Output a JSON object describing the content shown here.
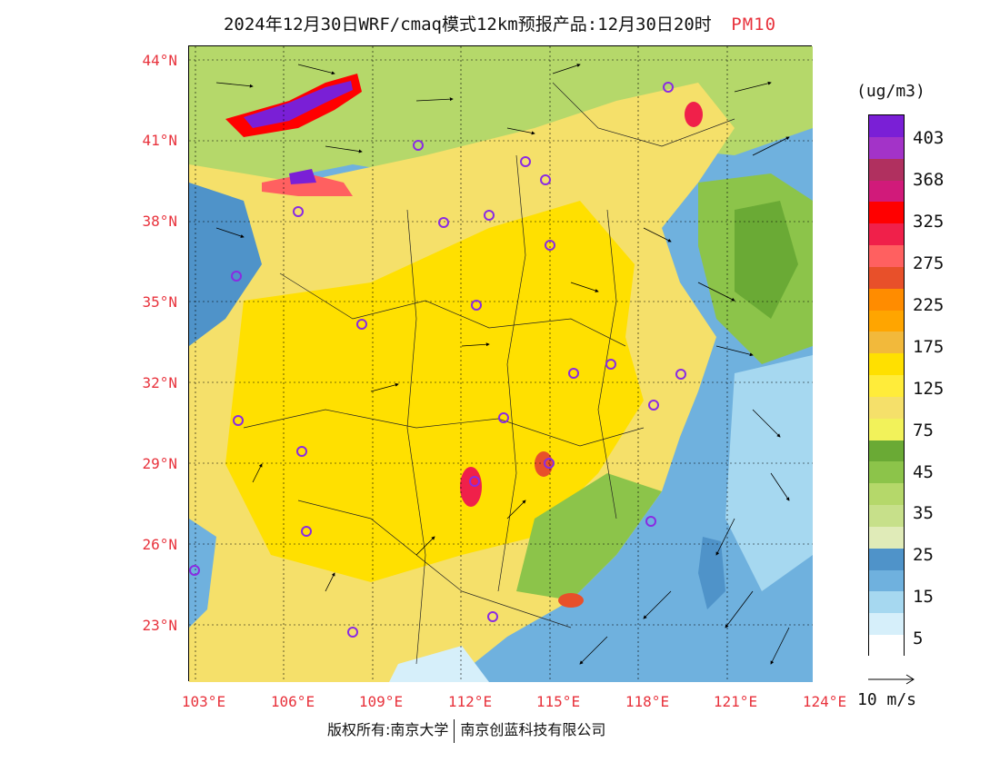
{
  "title": {
    "main": "2024年12月30日WRF/cmaq模式12km预报产品:12月30日20时",
    "variable": "PM10"
  },
  "axes": {
    "lat_labels": [
      "44°N",
      "41°N",
      "38°N",
      "35°N",
      "32°N",
      "29°N",
      "26°N",
      "23°N"
    ],
    "lon_labels": [
      "103°E",
      "106°E",
      "109°E",
      "112°E",
      "115°E",
      "118°E",
      "121°E",
      "124°E"
    ]
  },
  "legend": {
    "unit": "(ug/m3)",
    "labels": [
      "403",
      "368",
      "325",
      "275",
      "225",
      "175",
      "125",
      "75",
      "45",
      "35",
      "25",
      "15",
      "5"
    ],
    "colors": [
      "#7a1fd6",
      "#a333c8",
      "#b0305f",
      "#d11a7a",
      "#ff0000",
      "#f0204a",
      "#ff6060",
      "#e8502a",
      "#ff8c00",
      "#ffa500",
      "#f2b93b",
      "#ffe000",
      "#ffec3a",
      "#f5e06a",
      "#f2f25a",
      "#6aaa35",
      "#8cc44a",
      "#b5d86a",
      "#c7e08a",
      "#e0ebb8",
      "#4f93c9",
      "#6fb1de",
      "#a6d8f0",
      "#d6effa",
      "#ffffff"
    ]
  },
  "wind_reference": {
    "label": "10 m/s"
  },
  "copyright": {
    "left": "版权所有:南京大学",
    "right": "南京创蓝科技有限公司"
  },
  "colors": {
    "axis_label": "#e8323c",
    "title_variable": "#e8323c",
    "city_marker": "#8a2be2"
  },
  "icons": {
    "city_marker": "circle-marker-icon",
    "wind_vector": "arrow-icon"
  }
}
